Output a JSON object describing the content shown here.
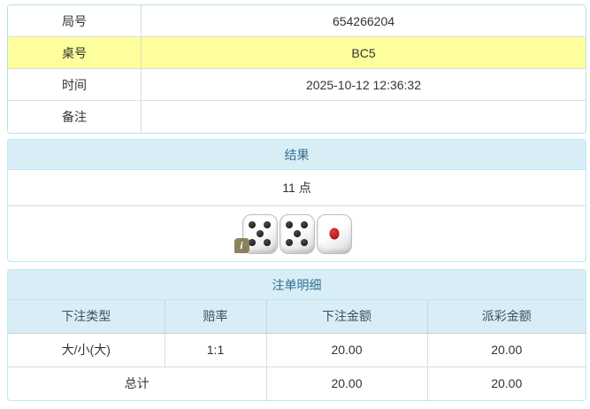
{
  "info_table": {
    "rows": [
      {
        "label": "局号",
        "value": "654266204",
        "highlight": false
      },
      {
        "label": "桌号",
        "value": "BC5",
        "highlight": true
      },
      {
        "label": "时间",
        "value": "2025-10-12 12:36:32",
        "highlight": false
      },
      {
        "label": "备注",
        "value": "",
        "highlight": false
      }
    ]
  },
  "result_panel": {
    "title": "结果",
    "points": "11 点",
    "dice": [
      {
        "value": 5,
        "pip_color": "black"
      },
      {
        "value": 5,
        "pip_color": "black"
      },
      {
        "value": 1,
        "pip_color": "red"
      }
    ],
    "info_badge_label": "i"
  },
  "bet_panel": {
    "title": "注单明细",
    "columns": [
      "下注类型",
      "赔率",
      "下注金额",
      "派彩金额"
    ],
    "rows": [
      {
        "type": "大/小(大)",
        "odds": "1:1",
        "bet": "20.00",
        "payout": "20.00"
      }
    ],
    "total": {
      "label": "总计",
      "bet": "20.00",
      "payout": "20.00"
    }
  },
  "colors": {
    "panel_border": "#bce8f1",
    "panel_heading_bg": "#d9edf7",
    "heading_text": "#31708f",
    "highlight_row_bg": "#feff9c",
    "odds_red": "#e03333",
    "row_divider": "#dddddd"
  }
}
